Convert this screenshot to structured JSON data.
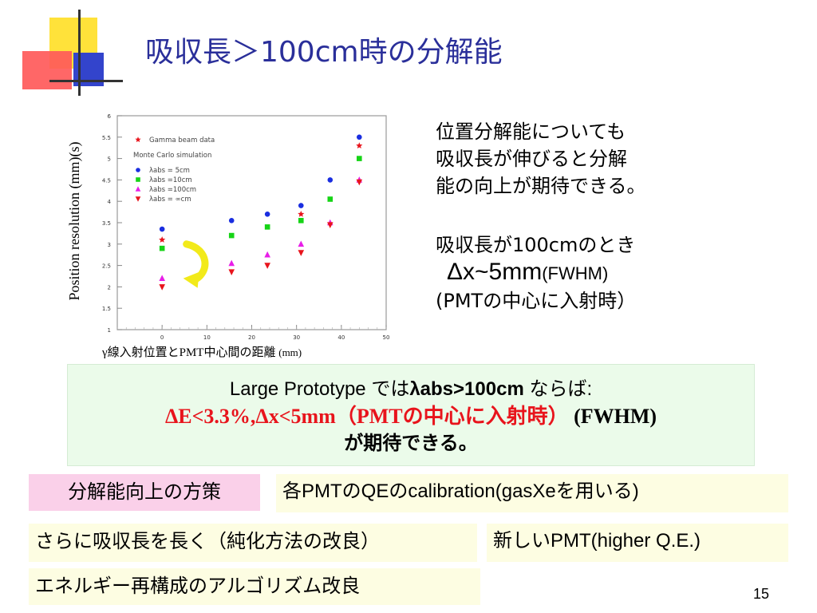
{
  "title": "吸収長＞100cm時の分解能",
  "chart_data": {
    "type": "scatter",
    "ylabel": "Position resolution (mm)(s)",
    "xlabel": "γ線入射位置とPMT中心間の距離",
    "xlabel_unit": "(mm)",
    "xlim": [
      -10,
      50
    ],
    "ylim": [
      1,
      6
    ],
    "xticks": [
      0,
      10,
      20,
      30,
      40,
      50
    ],
    "yticks": [
      1,
      1.5,
      2,
      2.5,
      3,
      3.5,
      4,
      4.5,
      5,
      5.5,
      6
    ],
    "ytick_labels": [
      "1",
      "1.5",
      "2",
      "2.5",
      "3",
      "3.5",
      "4",
      "4.5",
      "5",
      "5.5",
      "6"
    ],
    "legend": {
      "placement": "top-left",
      "header": "Monte Carlo simulation",
      "entries": [
        {
          "label": "Gamma beam data",
          "color": "#e8141c",
          "marker": "star"
        },
        {
          "label": "λabs = 5cm",
          "color": "#1a2ee0",
          "marker": "circle"
        },
        {
          "label": "λabs =10cm",
          "color": "#16d416",
          "marker": "square"
        },
        {
          "label": "λabs =100cm",
          "color": "#e81ee8",
          "marker": "triangle-up"
        },
        {
          "label": "λabs = ∞cm",
          "color": "#e8141c",
          "marker": "triangle-down"
        }
      ]
    },
    "series": [
      {
        "name": "Gamma beam data",
        "marker": "star",
        "color": "#e8141c",
        "x": [
          0,
          31,
          44
        ],
        "y": [
          3.1,
          3.7,
          5.3
        ]
      },
      {
        "name": "λabs = 5cm",
        "marker": "circle",
        "color": "#1a2ee0",
        "x": [
          0,
          15.5,
          23.5,
          31,
          37.5,
          44
        ],
        "y": [
          3.35,
          3.55,
          3.7,
          3.9,
          4.5,
          5.5
        ]
      },
      {
        "name": "λabs =10cm",
        "marker": "square",
        "color": "#16d416",
        "x": [
          0,
          15.5,
          23.5,
          31,
          37.5,
          44
        ],
        "y": [
          2.9,
          3.2,
          3.4,
          3.55,
          4.05,
          5.0
        ]
      },
      {
        "name": "λabs =100cm",
        "marker": "triangle-up",
        "color": "#e81ee8",
        "x": [
          0,
          15.5,
          23.5,
          31,
          37.5,
          44
        ],
        "y": [
          2.2,
          2.55,
          2.75,
          3.0,
          3.5,
          4.5
        ]
      },
      {
        "name": "λabs = ∞cm",
        "marker": "triangle-down",
        "color": "#e8141c",
        "x": [
          0,
          15.5,
          23.5,
          31,
          37.5,
          44
        ],
        "y": [
          2.0,
          2.35,
          2.5,
          2.8,
          3.45,
          4.45
        ]
      }
    ]
  },
  "right_text": {
    "p1_lines": [
      "位置分解能についても",
      "吸収長が伸びると分解",
      "能の向上が期待できる。"
    ],
    "p2_line1": "吸収長が100cmのとき",
    "p2_delta": "Δx~5mm",
    "p2_fwhm": "(FWHM)",
    "p2_line3": "(PMTの中心に入射時）"
  },
  "green_box": {
    "line1_a": "Large Prototype では",
    "line1_b": "λabs>100cm",
    "line1_c": " ならば:",
    "line2_red": "ΔE<3.3%,Δx<5mm（PMTの中心に入射時）",
    "line2_black": " (FWHM)",
    "line3": "が期待できる。"
  },
  "boxes": {
    "pink": "分解能向上の方策",
    "qe": "各PMTのQEのcalibration(gasXeを用いる)",
    "absorb": "さらに吸収長を長く（純化方法の改良）",
    "pmt": "新しいPMT(higher Q.E.)",
    "algo": "エネルギー再構成のアルゴリズム改良"
  },
  "page_number": "15"
}
